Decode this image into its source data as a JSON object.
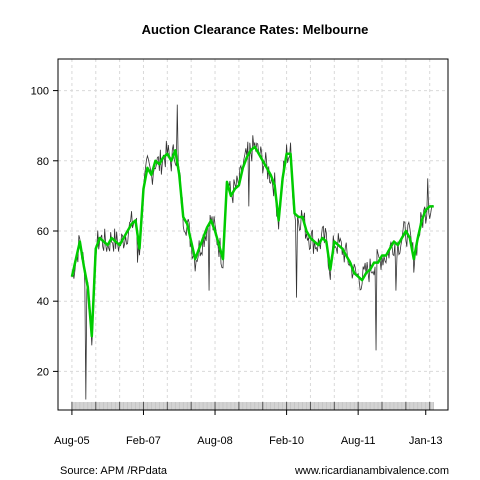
{
  "chart_data": {
    "type": "line",
    "title": "Auction Clearance Rates: Melbourne",
    "xlabel": "",
    "ylabel": "",
    "x_tick_labels": [
      "Aug-05",
      "Feb-07",
      "Aug-08",
      "Feb-10",
      "Aug-11",
      "Jan-13"
    ],
    "x_tick_dates": [
      "2005-08",
      "2007-02",
      "2008-08",
      "2010-02",
      "2011-08",
      "2013-01"
    ],
    "y_ticks": [
      20,
      40,
      60,
      80,
      100
    ],
    "ylim": [
      9,
      109
    ],
    "xlim": [
      "2005-05",
      "2013-06"
    ],
    "grid": true,
    "series": [
      {
        "values_by_month": {
          "x": [
            "2005-08",
            "2005-09",
            "2005-10",
            "2005-11",
            "2005-12",
            "2006-01",
            "2006-02",
            "2006-03",
            "2006-04",
            "2006-05",
            "2006-06",
            "2006-07",
            "2006-08",
            "2006-09",
            "2006-10",
            "2006-11",
            "2006-12",
            "2007-01",
            "2007-02",
            "2007-03",
            "2007-04",
            "2007-05",
            "2007-06",
            "2007-07",
            "2007-08",
            "2007-09",
            "2007-10",
            "2007-11",
            "2007-12",
            "2008-01",
            "2008-02",
            "2008-03",
            "2008-04",
            "2008-05",
            "2008-06",
            "2008-07",
            "2008-08",
            "2008-09",
            "2008-10",
            "2008-11",
            "2008-12",
            "2009-01",
            "2009-02",
            "2009-03",
            "2009-04",
            "2009-05",
            "2009-06",
            "2009-07",
            "2009-08",
            "2009-09",
            "2009-10",
            "2009-11",
            "2009-12",
            "2010-01",
            "2010-02",
            "2010-03",
            "2010-04",
            "2010-05",
            "2010-06",
            "2010-07",
            "2010-08",
            "2010-09",
            "2010-10",
            "2010-11",
            "2010-12",
            "2011-01",
            "2011-02",
            "2011-03",
            "2011-04",
            "2011-05",
            "2011-06",
            "2011-07",
            "2011-08",
            "2011-09",
            "2011-10",
            "2011-11",
            "2011-12",
            "2012-01",
            "2012-02",
            "2012-03",
            "2012-04",
            "2012-05",
            "2012-06",
            "2012-07",
            "2012-08",
            "2012-09",
            "2012-10",
            "2012-11",
            "2012-12",
            "2013-01",
            "2013-02",
            "2013-03"
          ],
          "y": [
            47,
            52,
            57,
            50,
            44,
            30,
            55,
            58,
            57,
            56,
            58,
            57,
            56,
            58,
            60,
            62,
            63,
            55,
            72,
            78,
            76,
            80,
            79,
            81,
            82,
            80,
            83,
            76,
            64,
            62,
            57,
            52,
            55,
            58,
            61,
            63,
            60,
            56,
            52,
            74,
            70,
            72,
            73,
            78,
            81,
            83,
            84,
            82,
            80,
            78,
            76,
            73,
            63,
            75,
            82,
            82,
            65,
            64,
            64,
            60,
            58,
            57,
            56,
            58,
            57,
            49,
            57,
            56,
            55,
            53,
            51,
            48,
            47,
            46,
            48,
            49,
            51,
            51,
            53,
            53,
            55,
            57,
            56,
            58,
            60,
            58,
            52,
            58,
            63,
            66,
            67,
            67
          ]
        },
        "name": "",
        "color": "#00cc00"
      }
    ],
    "raw_series_color": "#333333",
    "smooth_series_color": "#00cc00",
    "x_axis_band_color": "#d3d3d3"
  },
  "footer": {
    "source": "Source: APM /RPdata",
    "website": "www.ricardianambivalence.com"
  }
}
